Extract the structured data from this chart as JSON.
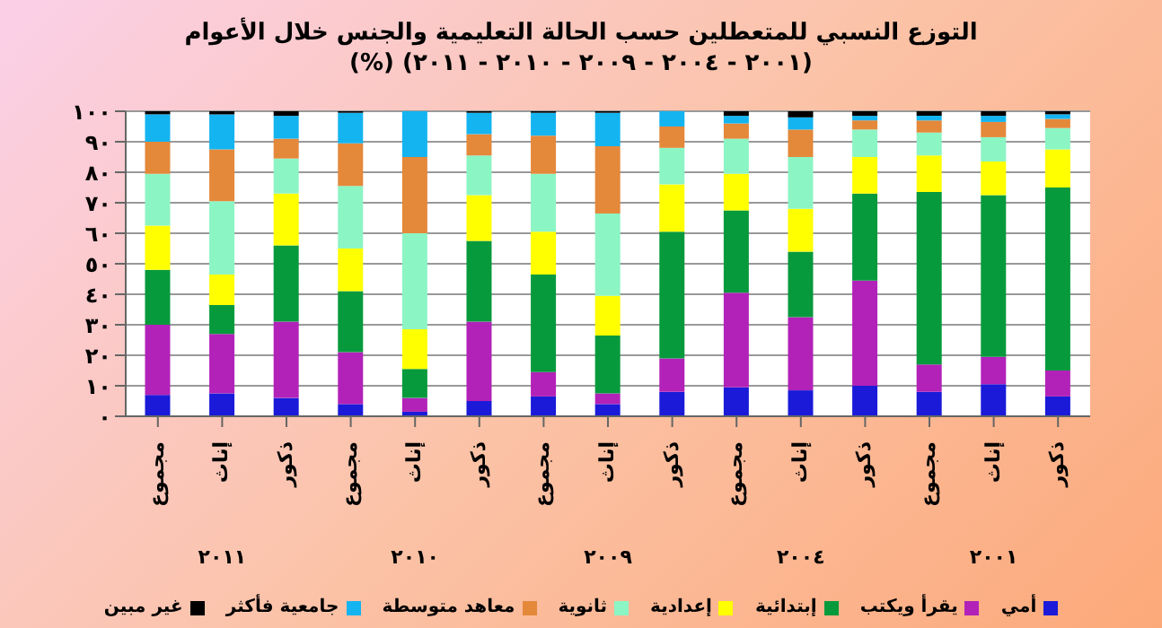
{
  "chart_data": {
    "type": "bar",
    "stacked": true,
    "title": "التوزع النسبي للمتعطلين حسب الحالة التعليمية والجنس خلال الأعوام",
    "subtitle": "(٢٠٠١ - ٢٠٠٤ - ٢٠٠٩ - ٢٠١٠ - ٢٠١١) (%)",
    "categories": [
      "مجموع",
      "إناث",
      "ذكور",
      "مجموع",
      "إناث",
      "ذكور",
      "مجموع",
      "إناث",
      "ذكور",
      "مجموع",
      "إناث",
      "ذكور",
      "مجموع",
      "إناث",
      "ذكور"
    ],
    "annotations": [
      "٢٠١١",
      "٢٠١٠",
      "٢٠٠٩",
      "٢٠٠٤",
      "٢٠٠١"
    ],
    "series": [
      {
        "name": "أمي",
        "color": "#1a1ad8",
        "values": [
          7,
          7.5,
          6,
          4,
          1.5,
          5,
          6.5,
          4,
          8,
          9.5,
          8.5,
          10,
          8,
          10.5,
          6.5
        ]
      },
      {
        "name": "يقرأ ويكتب",
        "color": "#b222b8",
        "values": [
          23,
          19.5,
          25,
          17,
          4.5,
          26,
          8,
          3.5,
          11,
          31,
          24,
          34.5,
          9,
          9,
          8.5
        ]
      },
      {
        "name": "إبتدائية",
        "color": "#079a3c",
        "values": [
          18,
          9.5,
          25,
          20,
          9.5,
          26.5,
          32,
          19,
          41.5,
          27,
          21.5,
          28.5,
          56.5,
          53,
          60
        ]
      },
      {
        "name": "إعدادية",
        "color": "#ffff00",
        "values": [
          14.5,
          10,
          17,
          14,
          13,
          15,
          14,
          13,
          15.5,
          12,
          14,
          12,
          12,
          11,
          12.5
        ]
      },
      {
        "name": "ثانوية",
        "color": "#8cf5c4",
        "values": [
          17,
          24,
          11.5,
          20.5,
          31.5,
          13,
          19,
          27,
          12,
          11.5,
          17,
          9,
          7.5,
          8,
          7
        ]
      },
      {
        "name": "معاهد متوسطة",
        "color": "#e4883a",
        "values": [
          10.5,
          17,
          6.5,
          14,
          25,
          7,
          12.5,
          22,
          7,
          5,
          9,
          3,
          4,
          5,
          3
        ]
      },
      {
        "name": "جامعية فأكثر",
        "color": "#14b4f0",
        "values": [
          9,
          11.5,
          7.5,
          10,
          15,
          7,
          7.5,
          11,
          5,
          2.5,
          4,
          1.5,
          1.5,
          2,
          1.5
        ]
      },
      {
        "name": "غير مبين",
        "color": "#000000",
        "values": [
          1,
          1,
          1.5,
          0.5,
          0,
          0.5,
          0.5,
          0.5,
          0,
          1.5,
          2,
          1.5,
          1.5,
          1.5,
          1
        ]
      }
    ],
    "ylim": [
      0,
      100
    ],
    "yticks": [
      {
        "value": 0,
        "label": "٠"
      },
      {
        "value": 10,
        "label": "١٠"
      },
      {
        "value": 20,
        "label": "٢٠"
      },
      {
        "value": 30,
        "label": "٣٠"
      },
      {
        "value": 40,
        "label": "٤٠"
      },
      {
        "value": 50,
        "label": "٥٠"
      },
      {
        "value": 60,
        "label": "٦٠"
      },
      {
        "value": 70,
        "label": "٧٠"
      },
      {
        "value": 80,
        "label": "٨٠"
      },
      {
        "value": 90,
        "label": "٩٠"
      },
      {
        "value": 100,
        "label": "١٠٠"
      }
    ],
    "grid": "y",
    "legend": "bottom"
  }
}
